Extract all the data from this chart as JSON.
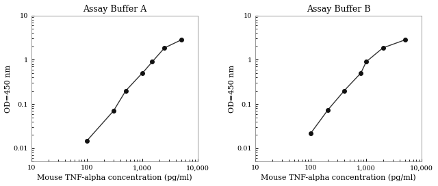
{
  "panel_A": {
    "title": "Assay Buffer A",
    "x": [
      100,
      300,
      500,
      1000,
      1500,
      2500,
      5000
    ],
    "y": [
      0.015,
      0.07,
      0.2,
      0.5,
      0.9,
      1.85,
      2.8
    ]
  },
  "panel_B": {
    "title": "Assay Buffer B",
    "x": [
      100,
      200,
      400,
      800,
      1000,
      2000,
      5000
    ],
    "y": [
      0.022,
      0.072,
      0.2,
      0.5,
      0.9,
      1.85,
      2.8
    ]
  },
  "xlabel": "Mouse TNF-alpha concentration (pg/ml)",
  "ylabel": "OD=450 nm",
  "xlim": [
    10,
    10000
  ],
  "ylim": [
    0.005,
    10
  ],
  "xticks": [
    10,
    100,
    1000,
    10000
  ],
  "xtick_labels": [
    "10",
    "100",
    "1,000",
    "10,000"
  ],
  "yticks": [
    0.01,
    0.1,
    1,
    10
  ],
  "ytick_labels": [
    "0.01",
    "0.1",
    "1",
    "10"
  ],
  "line_color": "#333333",
  "marker_color": "#111111",
  "marker_size": 4,
  "line_width": 1.0,
  "bg_color": "#ffffff",
  "plot_bg": "#ffffff",
  "title_fontsize": 9,
  "label_fontsize": 8,
  "tick_fontsize": 7
}
